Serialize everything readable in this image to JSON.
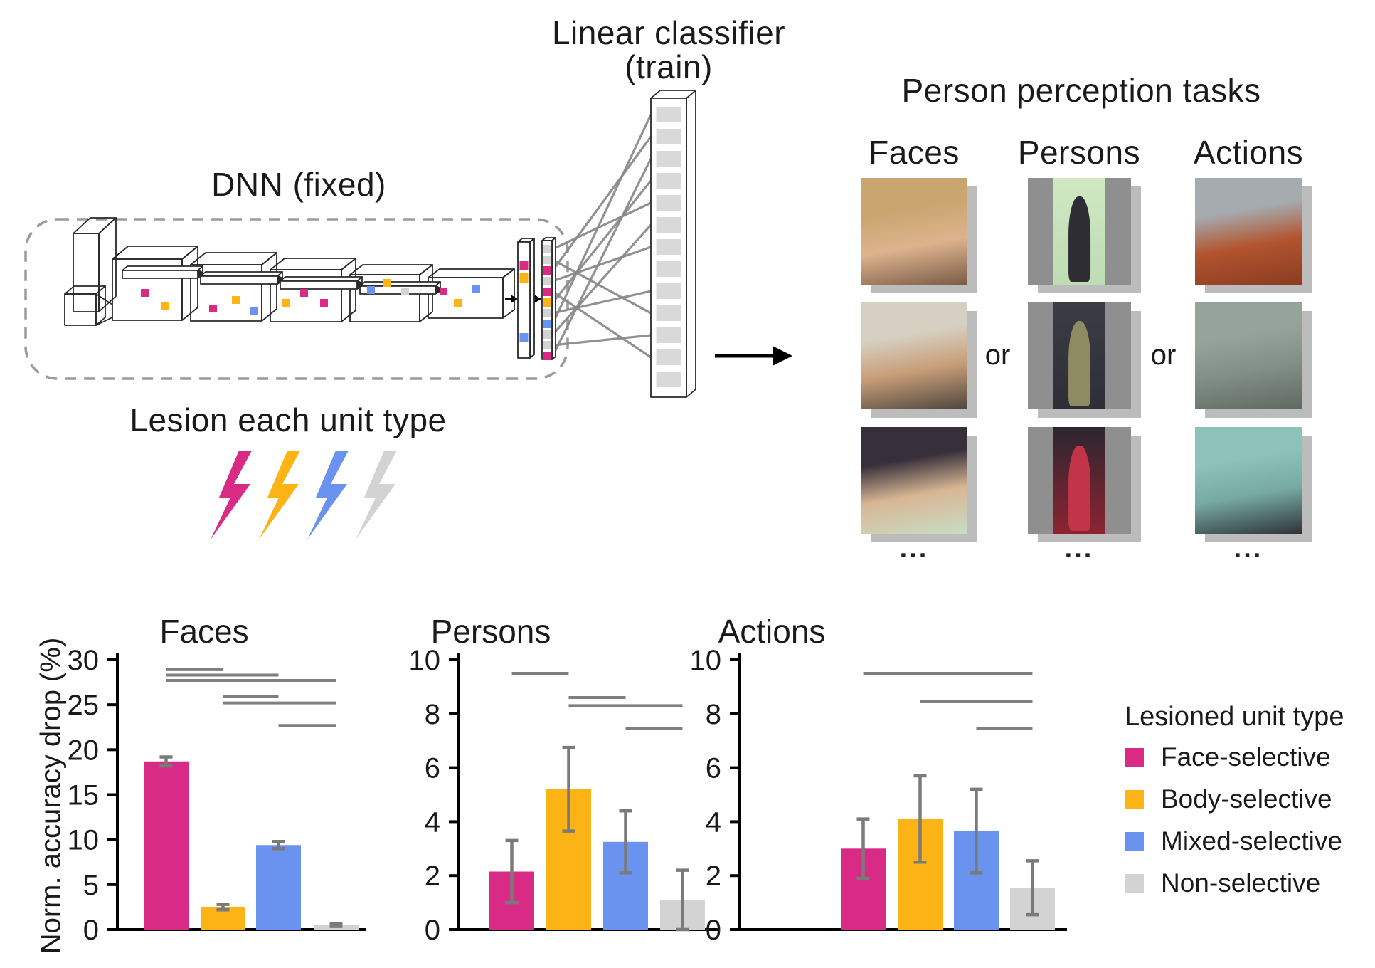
{
  "colors": {
    "face_selective": "#d92a85",
    "body_selective": "#fcb316",
    "mixed_selective": "#6a93f0",
    "non_selective": "#d3d3d3",
    "error_bar": "#7a7a7a",
    "sig_line": "#7f7f7f",
    "axis": "#000000",
    "classifier_cell": "#d9d9d9",
    "fan_line": "#888888",
    "photo_shadow": "#bcbcbc",
    "person_letterbox": "#8f8f8f",
    "dashed_border": "#9a9a9a"
  },
  "diagram": {
    "dnn_label": "DNN (fixed)",
    "classifier_label_line1": "Linear classifier",
    "classifier_label_line2": "(train)",
    "lesion_label": "Lesion each unit type",
    "bolt_order": [
      "face_selective",
      "body_selective",
      "mixed_selective",
      "non_selective"
    ],
    "v1_cells": [
      "face_selective",
      "body_selective",
      "mixed_selective"
    ],
    "v2_cells": [
      "non_selective",
      "non_selective",
      "face_selective",
      "non_selective",
      "face_selective",
      "body_selective",
      "non_selective",
      "mixed_selective",
      "non_selective",
      "non_selective",
      "face_selective"
    ]
  },
  "tasks": {
    "title": "Person perception tasks",
    "or_label": "or",
    "ellipsis": "...",
    "columns": [
      {
        "label": "Faces",
        "images": [
          {
            "name": "female-face-blonde",
            "palette": [
              "#c9a670",
              "#ddb38e",
              "#7a5c46"
            ]
          },
          {
            "name": "male-face-brown-hair",
            "palette": [
              "#d6d0c2",
              "#c89e78",
              "#4e463e"
            ]
          },
          {
            "name": "male-face-long-hair",
            "palette": [
              "#37303a",
              "#d8b694",
              "#c9dcc4"
            ]
          }
        ]
      },
      {
        "label": "Persons",
        "images": [
          {
            "name": "man-suit-green-backdrop",
            "palette": [
              "#cfe8c2",
              "#bfdcb4",
              "#2d2d33"
            ]
          },
          {
            "name": "woman-coat-dark-backdrop",
            "palette": [
              "#3c3c44",
              "#2e2e36",
              "#8e8a62"
            ]
          },
          {
            "name": "woman-dress-red-carpet",
            "palette": [
              "#2c2630",
              "#8c2432",
              "#c23448"
            ]
          }
        ]
      },
      {
        "label": "Actions",
        "images": [
          {
            "name": "runner-on-track",
            "palette": [
              "#a6abb0",
              "#b2542e",
              "#8a3c22"
            ]
          },
          {
            "name": "rock-climber-on-wall",
            "palette": [
              "#96a39b",
              "#828f87",
              "#5e6a62"
            ]
          },
          {
            "name": "man-at-phone-booth",
            "palette": [
              "#8cc2ba",
              "#76aaa2",
              "#2f3338"
            ]
          }
        ]
      }
    ]
  },
  "charts": {
    "ylabel": "Norm. accuracy drop (%)",
    "legend": {
      "title": "Lesioned unit type",
      "entries": [
        {
          "label": "Face-selective",
          "color_key": "face_selective"
        },
        {
          "label": "Body-selective",
          "color_key": "body_selective"
        },
        {
          "label": "Mixed-selective",
          "color_key": "mixed_selective"
        },
        {
          "label": "Non-selective",
          "color_key": "non_selective"
        }
      ]
    }
  },
  "chart_data": [
    {
      "type": "bar",
      "title": "Faces",
      "categories": [
        "Face-selective",
        "Body-selective",
        "Mixed-selective",
        "Non-selective"
      ],
      "values": [
        18.7,
        2.5,
        9.4,
        0.5
      ],
      "errors": [
        0.5,
        0.3,
        0.4,
        0.15
      ],
      "ylabel": "Norm. accuracy drop (%)",
      "ylim": [
        0,
        30
      ],
      "yticks": [
        0,
        5,
        10,
        15,
        20,
        25,
        30
      ],
      "significance": [
        [
          0,
          1,
          28.9
        ],
        [
          0,
          2,
          28.3
        ],
        [
          0,
          3,
          27.7
        ],
        [
          1,
          2,
          25.9
        ],
        [
          1,
          3,
          25.2
        ],
        [
          2,
          3,
          22.7
        ]
      ],
      "legend_position": "none",
      "grid": false
    },
    {
      "type": "bar",
      "title": "Persons",
      "categories": [
        "Face-selective",
        "Body-selective",
        "Mixed-selective",
        "Non-selective"
      ],
      "values": [
        2.15,
        5.2,
        3.25,
        1.1
      ],
      "errors": [
        1.15,
        1.55,
        1.15,
        1.1
      ],
      "ylabel": "",
      "ylim": [
        0,
        10
      ],
      "yticks": [
        0,
        2,
        4,
        6,
        8,
        10
      ],
      "significance": [
        [
          0,
          1,
          9.5
        ],
        [
          1,
          2,
          8.6
        ],
        [
          1,
          3,
          8.3
        ],
        [
          2,
          3,
          7.45
        ]
      ],
      "legend_position": "none",
      "grid": false
    },
    {
      "type": "bar",
      "title": "Actions",
      "categories": [
        "Face-selective",
        "Body-selective",
        "Mixed-selective",
        "Non-selective"
      ],
      "values": [
        3.0,
        4.1,
        3.65,
        1.55
      ],
      "errors": [
        1.1,
        1.6,
        1.55,
        1.0
      ],
      "ylabel": "",
      "ylim": [
        0,
        10
      ],
      "yticks": [
        0,
        2,
        4,
        6,
        8,
        10
      ],
      "significance": [
        [
          0,
          3,
          9.5
        ],
        [
          1,
          3,
          8.45
        ],
        [
          2,
          3,
          7.45
        ]
      ],
      "legend_position": "right",
      "grid": false
    }
  ]
}
